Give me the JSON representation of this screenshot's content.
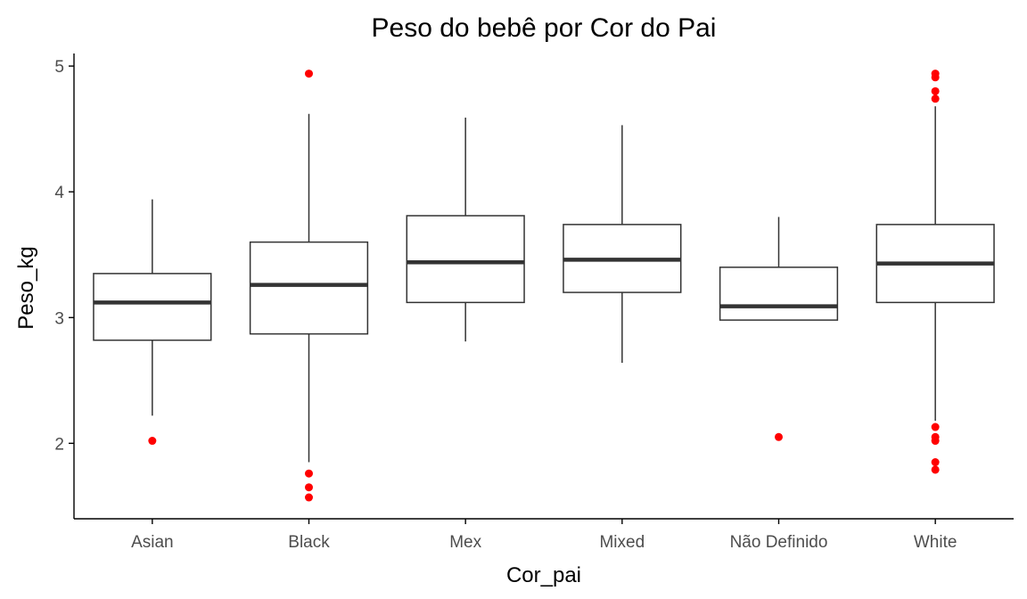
{
  "chart_data": {
    "type": "boxplot",
    "title": "Peso do bebê por Cor do Pai",
    "xlabel": "Cor_pai",
    "ylabel": "Peso_kg",
    "ylim": [
      1.4,
      5.1
    ],
    "yticks": [
      2,
      3,
      4,
      5
    ],
    "grid": false,
    "colors": {
      "box_stroke": "#333333",
      "outlier": "#ff0000",
      "axis": "#000000"
    },
    "categories": [
      "Asian",
      "Black",
      "Mex",
      "Mixed",
      "Não Definido",
      "White"
    ],
    "boxes": [
      {
        "category": "Asian",
        "whisker_low": 2.22,
        "q1": 2.82,
        "median": 3.12,
        "q3": 3.35,
        "whisker_high": 3.94,
        "outliers": [
          2.02
        ]
      },
      {
        "category": "Black",
        "whisker_low": 1.85,
        "q1": 2.87,
        "median": 3.26,
        "q3": 3.6,
        "whisker_high": 4.62,
        "outliers": [
          4.94,
          1.76,
          1.65,
          1.57
        ]
      },
      {
        "category": "Mex",
        "whisker_low": 2.81,
        "q1": 3.12,
        "median": 3.44,
        "q3": 3.81,
        "whisker_high": 4.59,
        "outliers": []
      },
      {
        "category": "Mixed",
        "whisker_low": 2.64,
        "q1": 3.2,
        "median": 3.46,
        "q3": 3.74,
        "whisker_high": 4.53,
        "outliers": []
      },
      {
        "category": "Não Definido",
        "whisker_low": 2.98,
        "q1": 2.98,
        "median": 3.09,
        "q3": 3.4,
        "whisker_high": 3.8,
        "outliers": [
          2.05
        ]
      },
      {
        "category": "White",
        "whisker_low": 2.18,
        "q1": 3.12,
        "median": 3.43,
        "q3": 3.74,
        "whisker_high": 4.68,
        "outliers": [
          4.94,
          4.91,
          4.8,
          4.74,
          2.13,
          2.05,
          2.02,
          1.85,
          1.79
        ]
      }
    ]
  }
}
